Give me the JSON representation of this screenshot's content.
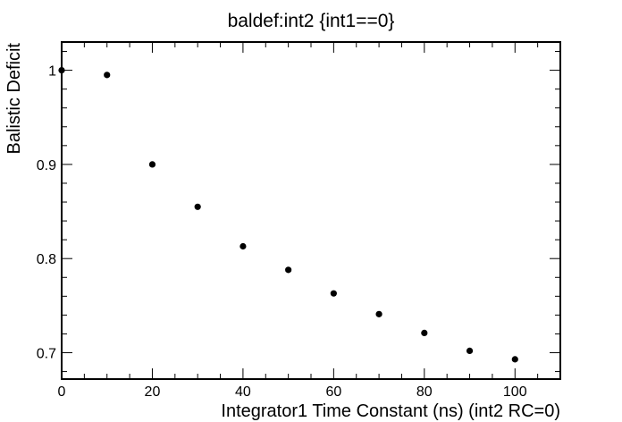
{
  "chart_data": {
    "type": "scatter",
    "title": "baldef:int2 {int1==0}",
    "xlabel": "Integrator1 Time Constant (ns)  (int2 RC=0)",
    "ylabel": "Balistic Deficit",
    "xlim": [
      0,
      110
    ],
    "ylim": [
      0.672,
      1.03
    ],
    "xticks": [
      0,
      20,
      40,
      60,
      80,
      100
    ],
    "xtick_labels": [
      "0",
      "20",
      "40",
      "60",
      "80",
      "100"
    ],
    "yticks": [
      0.7,
      0.8,
      0.9,
      1.0
    ],
    "ytick_labels": [
      "0.7",
      "0.8",
      "0.9",
      "1"
    ],
    "grid": false,
    "series": [
      {
        "x": [
          0,
          10,
          20,
          30,
          40,
          50,
          60,
          70,
          80,
          90,
          100
        ],
        "y": [
          1.0,
          0.995,
          0.9,
          0.855,
          0.813,
          0.788,
          0.763,
          0.741,
          0.721,
          0.702,
          0.693
        ]
      }
    ],
    "marker_color": "#000000"
  }
}
